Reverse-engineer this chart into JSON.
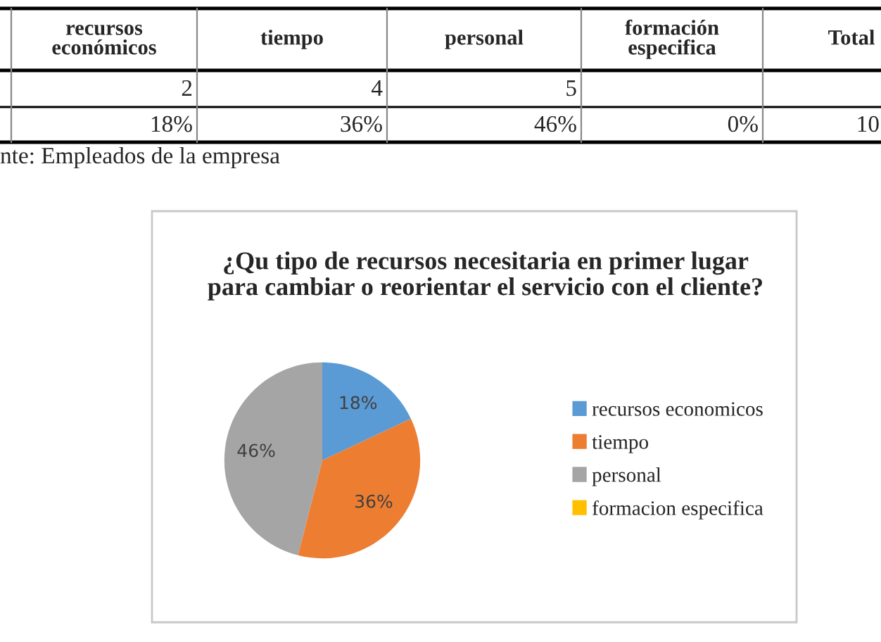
{
  "chart_data": [
    {
      "type": "other",
      "categories": [
        "recursos\neconómicos",
        "tiempo",
        "personal",
        "formación\nespecifica",
        "Total"
      ],
      "annotations": [
        "2",
        "4",
        "5",
        "18%",
        "36%",
        "46%",
        "0%",
        "10",
        "nte: Empleados de la empresa"
      ]
    },
    {
      "type": "pie",
      "title": "¿Qu tipo de recursos necesitaria en primer lugar\npara cambiar o reorientar el servicio con el cliente?",
      "categories": [
        "recursos economicos",
        "tiempo",
        "personal",
        "formacion especifica"
      ],
      "values": [
        18,
        36,
        46,
        0
      ],
      "colors": [
        "#5b9bd5",
        "#ed7d31",
        "#a5a5a5",
        "#ffc000"
      ],
      "value_labels": [
        "18%",
        "36%",
        "46%",
        null
      ],
      "legend": "right"
    }
  ]
}
